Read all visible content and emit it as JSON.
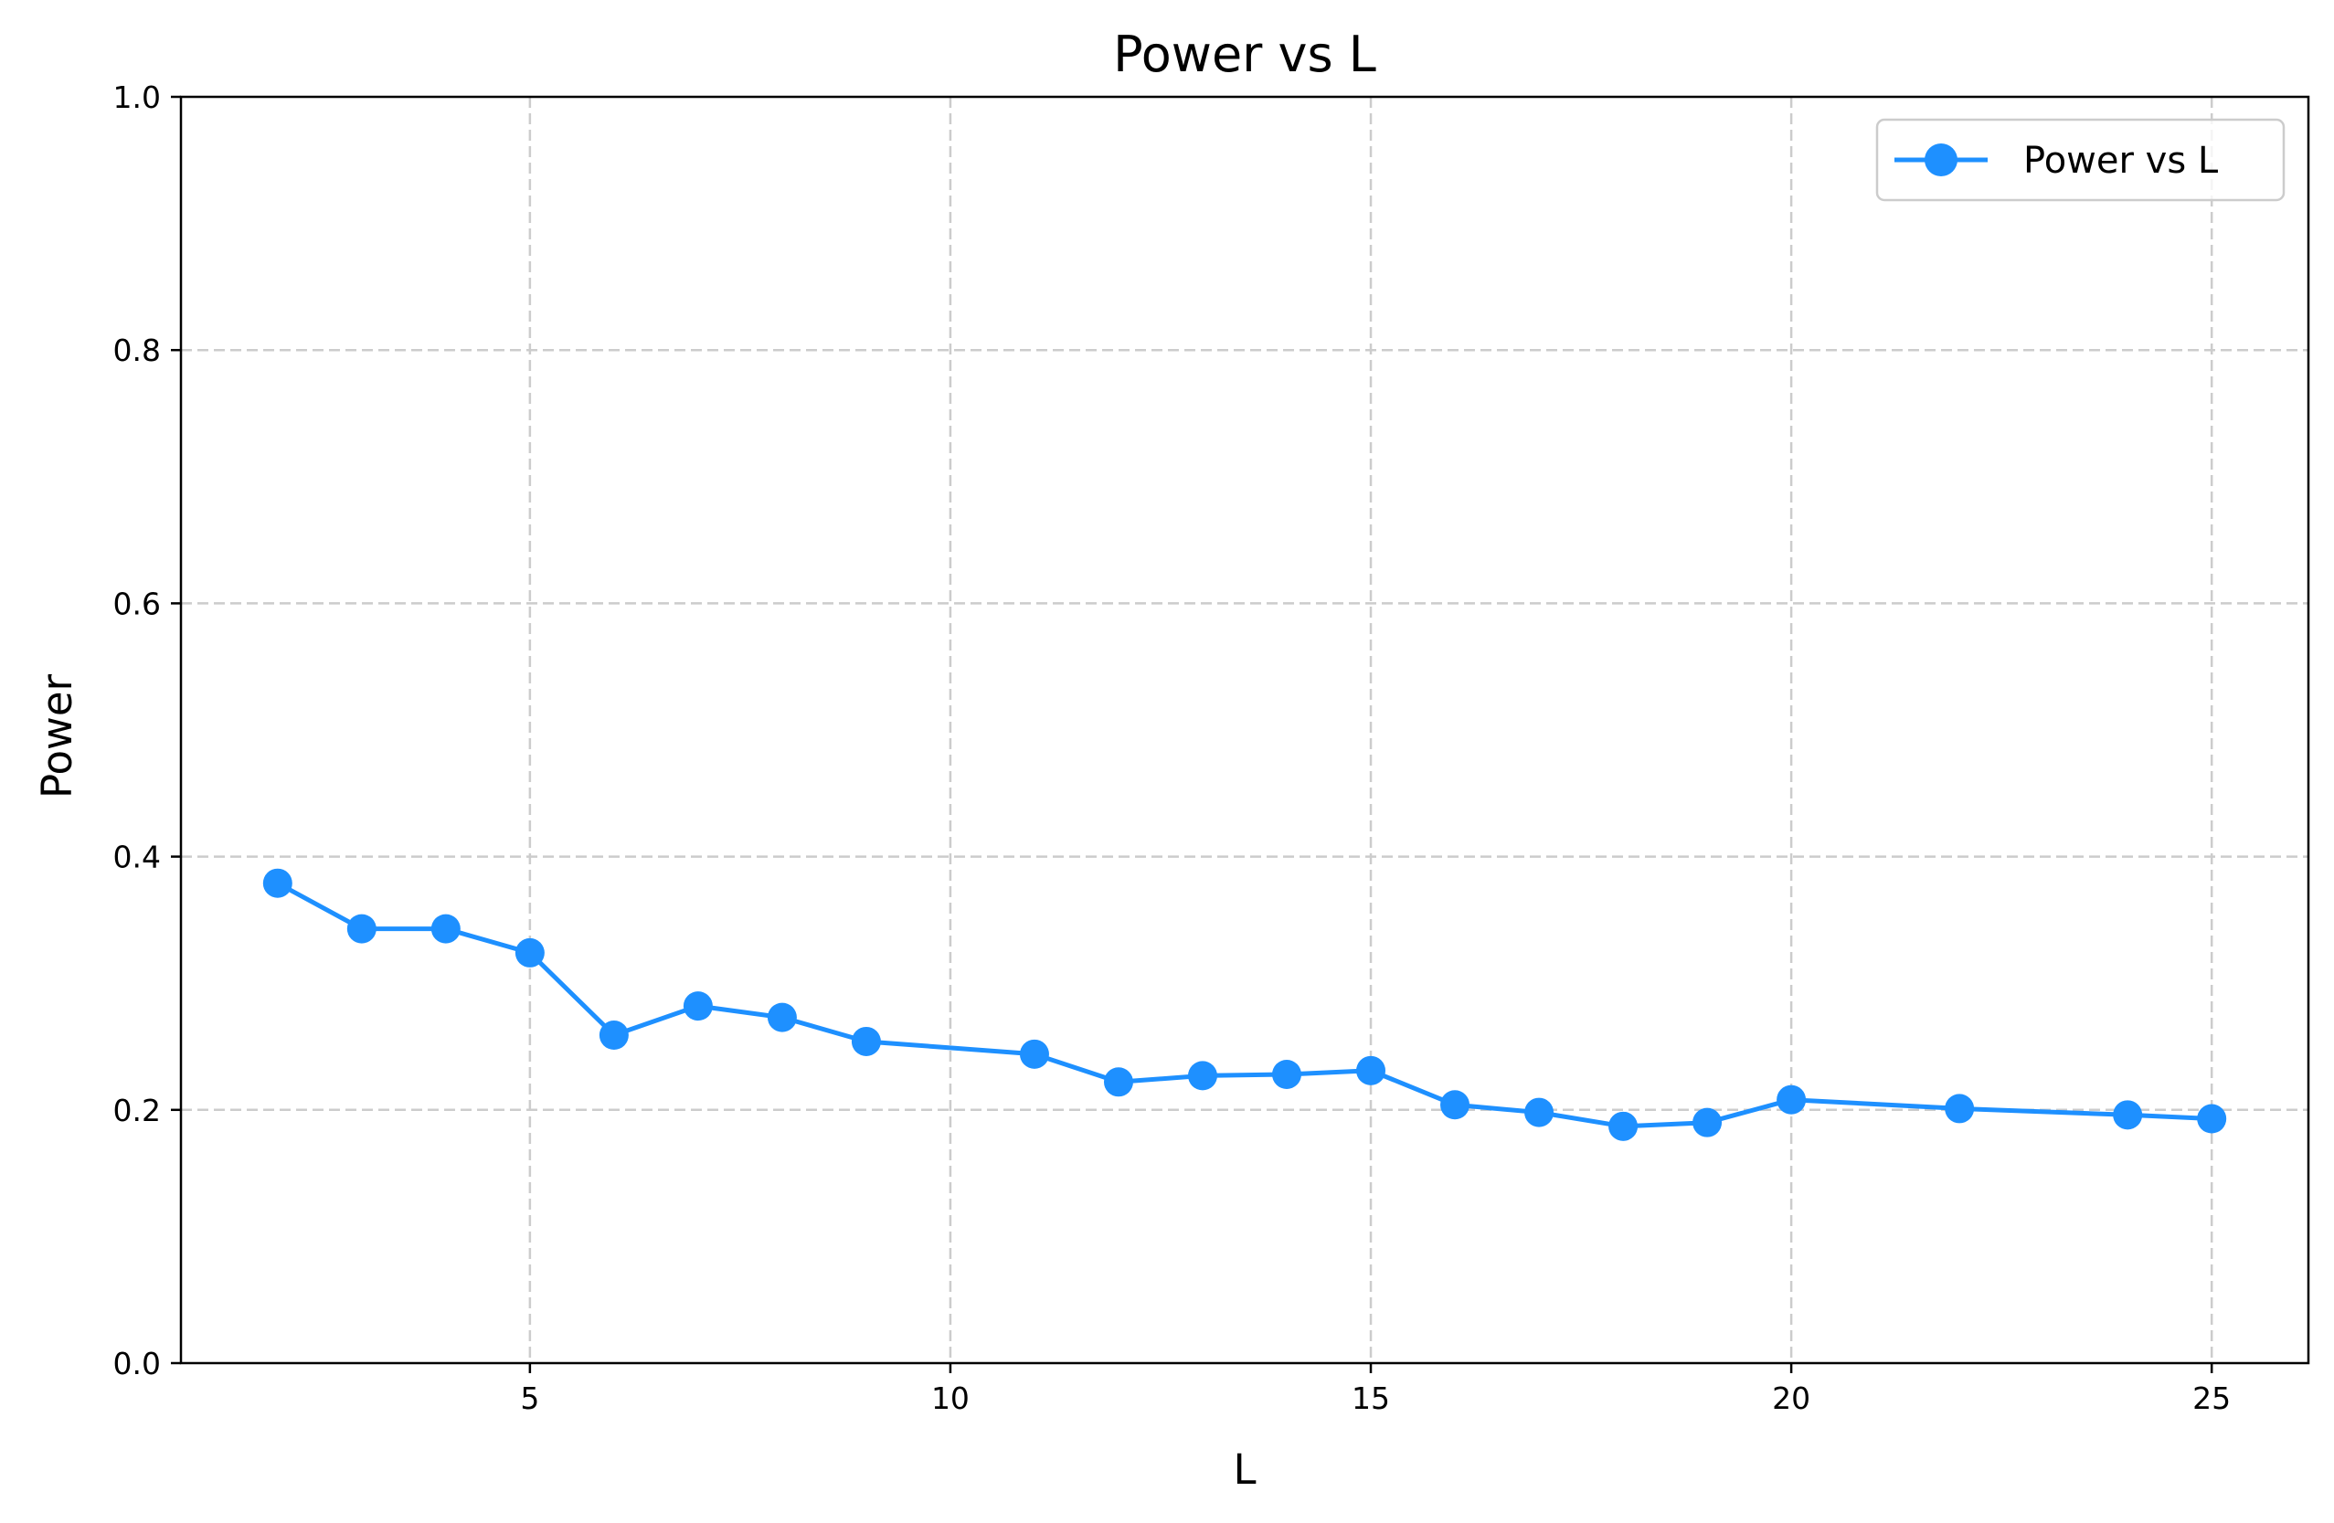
{
  "chart_data": {
    "type": "line",
    "title": "Power vs L",
    "xlabel": "L",
    "ylabel": "Power",
    "xlim": [
      0.85,
      26.15
    ],
    "ylim": [
      0.0,
      1.0
    ],
    "x_ticks": [
      5,
      10,
      15,
      20,
      25
    ],
    "x_tick_labels": [
      "5",
      "10",
      "15",
      "20",
      "25"
    ],
    "y_ticks": [
      0.0,
      0.2,
      0.4,
      0.6,
      0.8,
      1.0
    ],
    "y_tick_labels": [
      "0.0",
      "0.2",
      "0.4",
      "0.6",
      "0.8",
      "1.0"
    ],
    "grid": true,
    "legend_position": "top-right",
    "series": [
      {
        "name": "Power vs L",
        "color": "#1E90FF",
        "marker": "circle",
        "x": [
          2,
          3,
          4,
          5,
          6,
          7,
          8,
          9,
          11,
          12,
          13,
          14,
          15,
          16,
          17,
          18,
          19,
          20,
          22,
          24,
          25
        ],
        "y": [
          0.379,
          0.343,
          0.343,
          0.324,
          0.259,
          0.282,
          0.273,
          0.254,
          0.244,
          0.222,
          0.227,
          0.228,
          0.231,
          0.204,
          0.198,
          0.187,
          0.19,
          0.208,
          0.201,
          0.196,
          0.193
        ]
      }
    ]
  }
}
